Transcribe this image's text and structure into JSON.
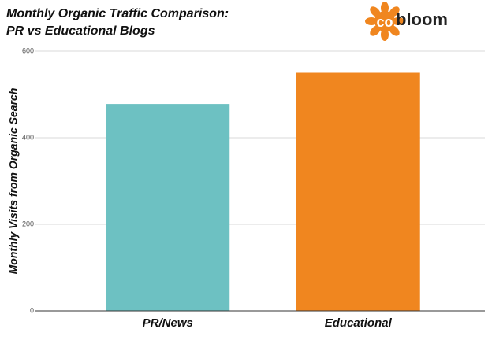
{
  "chart_data": {
    "type": "bar",
    "title": "Monthly Organic Traffic Comparison:",
    "subtitle": "PR vs Educational Blogs",
    "logo": {
      "mark": "co",
      "text": "bloom"
    },
    "y_label": "Monthly Visits from Organic Search",
    "categories": [
      "PR/News",
      "Educational"
    ],
    "values": [
      478,
      550
    ],
    "colors": [
      "#6dc1c2",
      "#f0861f"
    ],
    "ylim": [
      0,
      600
    ],
    "yticks": [
      0,
      200,
      400,
      600
    ],
    "grid": true
  }
}
